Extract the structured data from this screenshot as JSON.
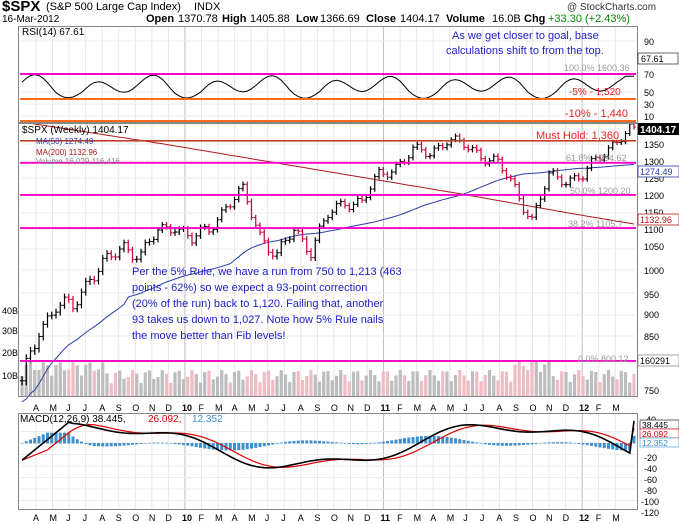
{
  "header": {
    "symbol": "$SPX",
    "name": "(S&P 500 Large Cap Index)",
    "exchange": "INDX",
    "watermark": "@ StockCharts.com",
    "date": "16-Mar-2012",
    "open_label": "Open",
    "open": "1370.78",
    "high_label": "High",
    "high": "1405.88",
    "low_label": "Low",
    "low": "1366.69",
    "close_label": "Close",
    "close": "1404.17",
    "volume_label": "Volume",
    "volume": "16.0B",
    "chg_label": "Chg",
    "chg": "+33.30 (+2.43%)"
  },
  "x_axis_labels": [
    "A",
    "M",
    "J",
    "J",
    "A",
    "S",
    "O",
    "N",
    "D",
    "10",
    "F",
    "M",
    "A",
    "M",
    "J",
    "J",
    "A",
    "S",
    "O",
    "N",
    "D",
    "11",
    "F",
    "M",
    "A",
    "M",
    "J",
    "J",
    "A",
    "S",
    "O",
    "N",
    "D",
    "12",
    "F",
    "M"
  ],
  "colors": {
    "magenta_line": "#ff00cc",
    "orange_line": "#ff6a1a",
    "price_up": "#000000",
    "price_down": "#cc0033",
    "ma50": "#2a3fa8",
    "ma200": "#b01a1a",
    "macd_line": "#000000",
    "signal_line": "#dd0000",
    "histogram": "#3d8fd0",
    "volume_bar": "#bdbdbd",
    "volume_down": "#f0bcc4",
    "annotation_text": "#2020c8",
    "alert_text": "#ee2222"
  },
  "rsi_panel": {
    "label": "RSI(14) 67.61",
    "ticks": [
      "90",
      "70",
      "50",
      "30",
      "10"
    ],
    "last_value": "67.61",
    "lines": [
      "100.0% 1600.36",
      "-5% - 1,520",
      "-10% - 1,440"
    ],
    "annotation_line1": "As we get closer to goal, base",
    "annotation_line2": "calculations shift to from the top."
  },
  "price_panel": {
    "legend_title": "$SPX (Weekly) 1404.17",
    "legend_ma50": "MA(50) 1274.49",
    "legend_ma200": "MA(200) 1132.96",
    "legend_volume": "Volume 16,029,116,416",
    "y_ticks": [
      "1350",
      "1300",
      "1250",
      "1200",
      "1150",
      "1100",
      "1050",
      "1000",
      "950",
      "900",
      "850",
      "800",
      "750"
    ],
    "vol_ticks": [
      "40B",
      "30B",
      "20B",
      "10B"
    ],
    "must_hold": "Must Hold: 1,360",
    "fib_labels": [
      "61.8% 1294.62",
      "50.0% 1200.20",
      "38.2% 1105.7",
      "0.0% 800.12"
    ],
    "price_box": "1404.17",
    "ma50_box": "1274.49",
    "ma200_box": "1132.96",
    "vol_box": "160291",
    "note_lines": [
      "Per the 5% Rule, we have a run from 750 to 1,213 (463",
      "points - 62%) so we expect a 93-point correction",
      "(20% of the run) back to 1,120.  Failing that, another",
      "93 takes us down to 1,027.  Note how 5% Rule nails",
      "the move better than Fib levels!"
    ]
  },
  "macd_panel": {
    "legend_macd": "MACD(12,26,9) 38.445,",
    "legend_signal": "26.092,",
    "legend_hist": "12.352",
    "y_ticks": [
      "40",
      "20",
      "0",
      "-20",
      "-40",
      "-60",
      "-80",
      "-100",
      "-120"
    ],
    "boxes": [
      "38.445",
      "26.092",
      "12.352"
    ]
  },
  "chart_data": {
    "type": "line",
    "title": "$SPX (S&P 500 Large Cap Index) INDX",
    "period": "Weekly",
    "x_range": [
      "2009-03",
      "2012-03-16"
    ],
    "price_ylim": [
      720,
      1420
    ],
    "close_series": [
      {
        "date": "2009-03",
        "close": 757
      },
      {
        "date": "2009-04",
        "close": 866
      },
      {
        "date": "2009-05",
        "close": 919
      },
      {
        "date": "2009-06",
        "close": 919
      },
      {
        "date": "2009-07",
        "close": 987
      },
      {
        "date": "2009-08",
        "close": 1020
      },
      {
        "date": "2009-09",
        "close": 1057
      },
      {
        "date": "2009-10",
        "close": 1036
      },
      {
        "date": "2009-11",
        "close": 1095
      },
      {
        "date": "2009-12",
        "close": 1115
      },
      {
        "date": "2010-01",
        "close": 1073
      },
      {
        "date": "2010-02",
        "close": 1104
      },
      {
        "date": "2010-03",
        "close": 1169
      },
      {
        "date": "2010-04",
        "close": 1211
      },
      {
        "date": "2010-05",
        "close": 1089
      },
      {
        "date": "2010-06",
        "close": 1030
      },
      {
        "date": "2010-07",
        "close": 1101
      },
      {
        "date": "2010-08",
        "close": 1049
      },
      {
        "date": "2010-09",
        "close": 1141
      },
      {
        "date": "2010-10",
        "close": 1183
      },
      {
        "date": "2010-11",
        "close": 1180
      },
      {
        "date": "2010-12",
        "close": 1257
      },
      {
        "date": "2011-01",
        "close": 1286
      },
      {
        "date": "2011-02",
        "close": 1327
      },
      {
        "date": "2011-03",
        "close": 1325
      },
      {
        "date": "2011-04",
        "close": 1363
      },
      {
        "date": "2011-05",
        "close": 1345
      },
      {
        "date": "2011-06",
        "close": 1320
      },
      {
        "date": "2011-07",
        "close": 1292
      },
      {
        "date": "2011-08",
        "close": 1218
      },
      {
        "date": "2011-09",
        "close": 1131
      },
      {
        "date": "2011-10",
        "close": 1253
      },
      {
        "date": "2011-11",
        "close": 1246
      },
      {
        "date": "2011-12",
        "close": 1257
      },
      {
        "date": "2012-01",
        "close": 1312
      },
      {
        "date": "2012-02",
        "close": 1365
      },
      {
        "date": "2012-03",
        "close": 1404
      }
    ],
    "ma50_last": 1274.49,
    "ma200_last": 1132.96,
    "horizontal_levels": [
      {
        "label": "Must Hold: 1,360",
        "value": 1360
      },
      {
        "label": "61.8% 1294.62",
        "value": 1294.62
      },
      {
        "label": "50.0% 1200.20",
        "value": 1200.2
      },
      {
        "label": "38.2% 1105.7",
        "value": 1105.7
      },
      {
        "label": "0.0% 800.12",
        "value": 800.12
      }
    ],
    "rsi": {
      "ylim": [
        0,
        100
      ],
      "last": 67.61
    },
    "macd": {
      "ylim": [
        -120,
        50
      ],
      "macd_last": 38.445,
      "signal_last": 26.092,
      "hist_last": 12.352
    }
  }
}
